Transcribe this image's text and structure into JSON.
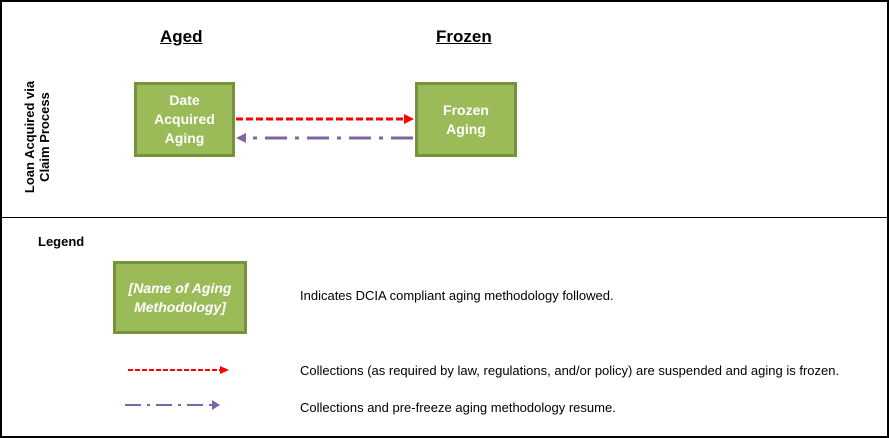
{
  "columns": {
    "aged": "Aged",
    "frozen": "Frozen"
  },
  "row_label": "Loan Acquired via Claim Process",
  "nodes": {
    "date_acquired": "Date Acquired Aging",
    "frozen": "Frozen Aging"
  },
  "legend": {
    "title": "Legend",
    "box_label": "[Name of Aging Methodology]",
    "box_desc": "Indicates DCIA compliant aging methodology followed.",
    "red_desc": "Collections (as required by law, regulations, and/or policy) are suspended and aging is frozen.",
    "purple_desc": "Collections and pre-freeze aging methodology resume."
  },
  "colors": {
    "box_fill": "#9BBB59",
    "box_border": "#76923C",
    "freeze_arrow": "#FF0000",
    "resume_arrow": "#8064A2"
  }
}
